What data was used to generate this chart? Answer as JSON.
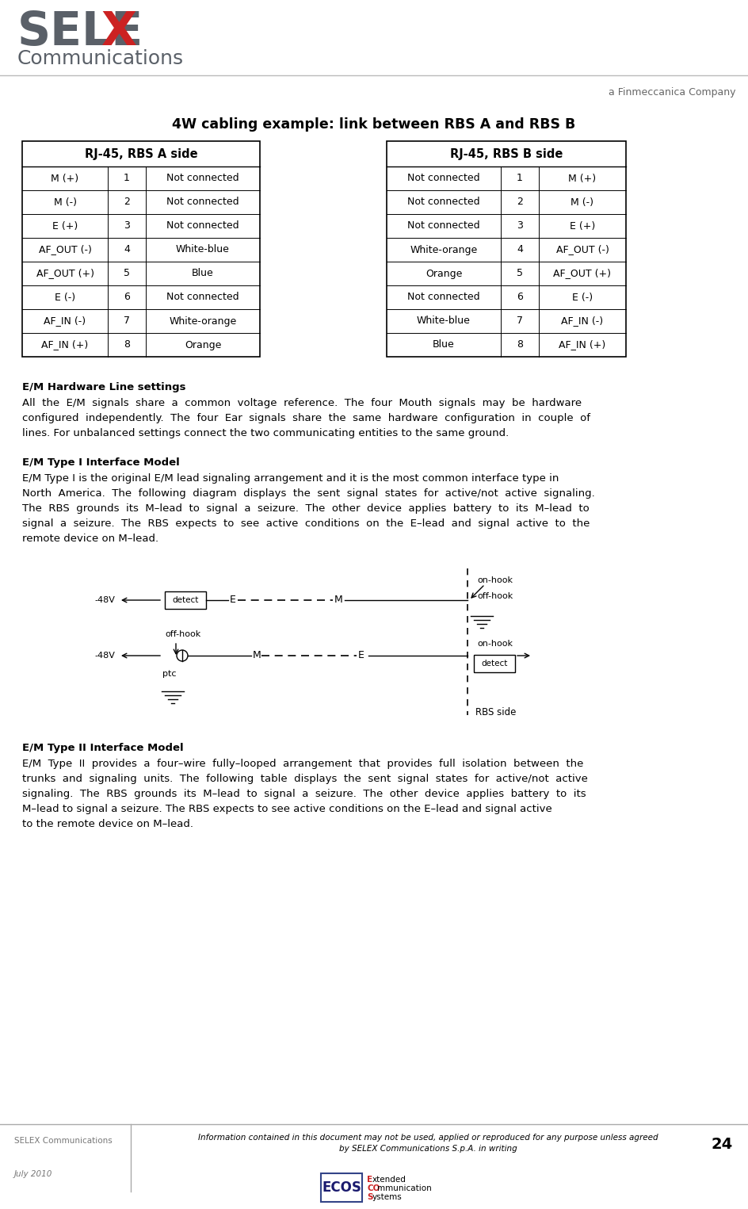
{
  "title": "4W cabling example: link between RBS A and RBS B",
  "header_a": "RJ-45, RBS A side",
  "header_b": "RJ-45, RBS B side",
  "table_a": [
    [
      "M (+)",
      "1",
      "Not connected"
    ],
    [
      "M (-)",
      "2",
      "Not connected"
    ],
    [
      "E (+)",
      "3",
      "Not connected"
    ],
    [
      "AF_OUT (-)",
      "4",
      "White-blue"
    ],
    [
      "AF_OUT (+)",
      "5",
      "Blue"
    ],
    [
      "E (-)",
      "6",
      "Not connected"
    ],
    [
      "AF_IN (-)",
      "7",
      "White-orange"
    ],
    [
      "AF_IN (+)",
      "8",
      "Orange"
    ]
  ],
  "table_b": [
    [
      "Not connected",
      "1",
      "M (+)"
    ],
    [
      "Not connected",
      "2",
      "M (-)"
    ],
    [
      "Not connected",
      "3",
      "E (+)"
    ],
    [
      "White-orange",
      "4",
      "AF_OUT (-)"
    ],
    [
      "Orange",
      "5",
      "AF_OUT (+)"
    ],
    [
      "Not connected",
      "6",
      "E (-)"
    ],
    [
      "White-blue",
      "7",
      "AF_IN (-)"
    ],
    [
      "Blue",
      "8",
      "AF_IN (+)"
    ]
  ],
  "em_hardware_title": "E/M Hardware Line settings",
  "em_hardware_body": [
    "All  the  E/M  signals  share  a  common  voltage  reference.  The  four  Mouth  signals  may  be  hardware",
    "configured  independently.  The  four  Ear  signals  share  the  same  hardware  configuration  in  couple  of",
    "lines. For unbalanced settings connect the two communicating entities to the same ground."
  ],
  "em_type1_title": "E/M Type I Interface Model",
  "em_type1_body": [
    "E/M Type I is the original E/M lead signaling arrangement and it is the most common interface type in",
    "North  America.  The  following  diagram  displays  the  sent  signal  states  for  active/not  active  signaling.",
    "The  RBS  grounds  its  M–lead  to  signal  a  seizure.  The  other  device  applies  battery  to  its  M–lead  to",
    "signal  a  seizure.  The  RBS  expects  to  see  active  conditions  on  the  E–lead  and  signal  active  to  the",
    "remote device on M–lead."
  ],
  "em_type2_title": "E/M Type II Interface Model",
  "em_type2_body": [
    "E/M  Type  II  provides  a  four–wire  fully–looped  arrangement  that  provides  full  isolation  between  the",
    "trunks  and  signaling  units.  The  following  table  displays  the  sent  signal  states  for  active/not  active",
    "signaling.  The  RBS  grounds  its  M–lead  to  signal  a  seizure.  The  other  device  applies  battery  to  its",
    "M–lead to signal a seizure. The RBS expects to see active conditions on the E–lead and signal active",
    "to the remote device on M–lead."
  ],
  "rbs_side_label": "RBS side",
  "footer_left1": "SELEX Communications",
  "footer_left2": "July 2010",
  "footer_center": "Information contained in this document may not be used, applied or reproduced for any purpose unless agreed\nby SELEX Communications S.p.A. in writing",
  "footer_page": "24",
  "finmeccanica": "a Finmeccanica Company",
  "bg_color": "#ffffff",
  "text_color": "#000000",
  "selex_gray": "#5a6068",
  "selex_red": "#cc2222",
  "ecos_blue": "#1a1a6e",
  "footer_gray": "#777777"
}
